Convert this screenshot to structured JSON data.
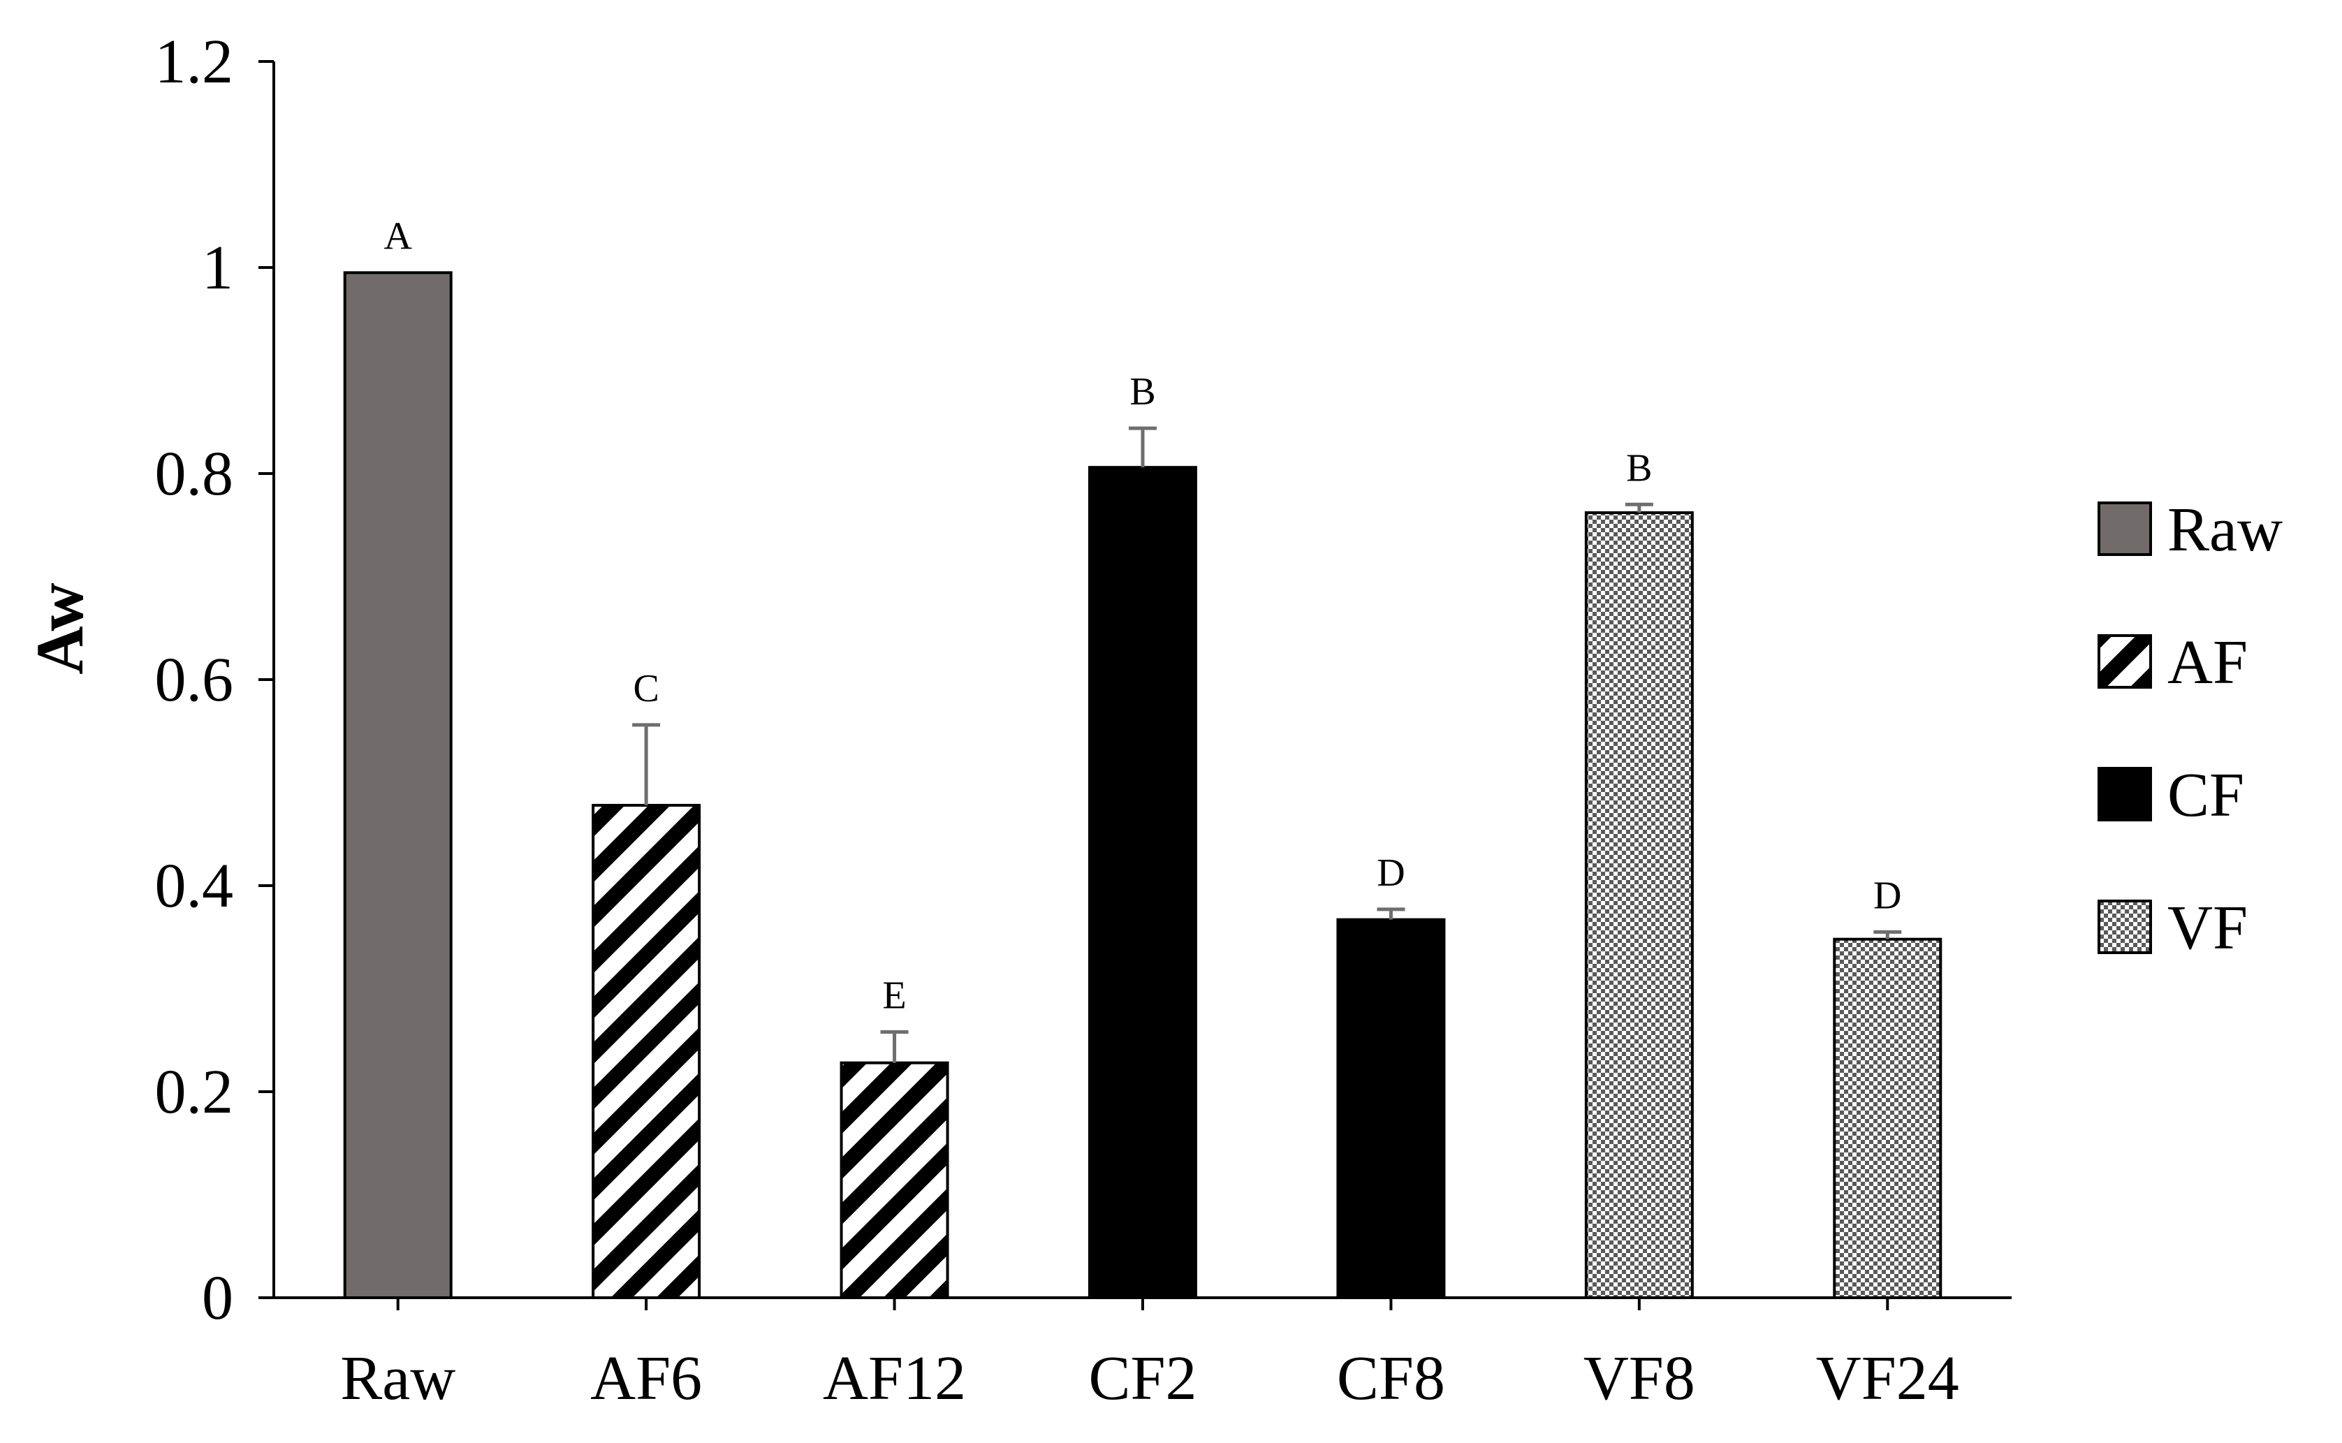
{
  "chart_data": {
    "type": "bar",
    "title": "",
    "xlabel": "",
    "ylabel": "Aw",
    "ylim": [
      0,
      1.2
    ],
    "yticks": [
      0,
      0.2,
      0.4,
      0.6,
      0.8,
      1,
      1.2
    ],
    "ytick_labels": [
      "0",
      "0.2",
      "0.4",
      "0.6",
      "0.8",
      "1",
      "1.2"
    ],
    "grid": false,
    "legend_position": "right",
    "categories": [
      "Raw",
      "AF6",
      "AF12",
      "CF2",
      "CF8",
      "VF8",
      "VF24"
    ],
    "values": [
      0.995,
      0.478,
      0.228,
      0.806,
      0.367,
      0.762,
      0.348
    ],
    "errors": [
      0.0,
      0.078,
      0.03,
      0.038,
      0.01,
      0.008,
      0.007
    ],
    "significance": [
      "A",
      "C",
      "E",
      "B",
      "D",
      "B",
      "D"
    ],
    "groups": [
      "Raw",
      "AF",
      "AF",
      "CF",
      "CF",
      "VF",
      "VF"
    ],
    "legend": [
      {
        "name": "Raw",
        "style": "gray"
      },
      {
        "name": "AF",
        "style": "hatch"
      },
      {
        "name": "CF",
        "style": "black"
      },
      {
        "name": "VF",
        "style": "checker"
      }
    ],
    "colors": {
      "raw_fill": "#716c6b",
      "cf_fill": "#000000",
      "hatch_stroke": "#000000",
      "checker_dark": "#5a5a5a",
      "error_bar": "#6e6e6e",
      "axis": "#000000"
    }
  }
}
